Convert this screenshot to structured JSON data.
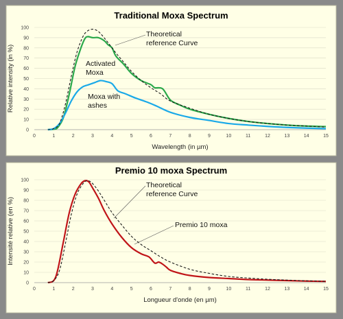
{
  "chart_data": [
    {
      "type": "line",
      "title": "Traditional  Moxa Spectrum",
      "xlabel": "Wavelength (in µm)",
      "ylabel": "Relative intensity (in %)",
      "xlim": [
        0,
        15
      ],
      "ylim": [
        0,
        100
      ],
      "xticks": [
        0,
        1,
        2,
        3,
        4,
        5,
        6,
        7,
        8,
        9,
        10,
        11,
        12,
        13,
        14,
        15
      ],
      "yticks": [
        0,
        10,
        20,
        30,
        40,
        50,
        60,
        70,
        80,
        90,
        100
      ],
      "grid": true,
      "annotations": [
        {
          "line1": "Theoretical",
          "line2": "reference Curve"
        },
        {
          "line1": "Activated",
          "line2": "Moxa"
        },
        {
          "line1": "Moxa with",
          "line2": "ashes"
        }
      ],
      "series": [
        {
          "name": "Theoretical reference Curve",
          "color": "#1a1a1a",
          "dash": true,
          "x": [
            0.7,
            1.0,
            1.3,
            1.6,
            1.9,
            2.2,
            2.5,
            2.7,
            2.9,
            3.1,
            3.3,
            3.5,
            3.8,
            4.2,
            4.6,
            5.0,
            5.5,
            6.0,
            6.5,
            7.0,
            8.0,
            9.0,
            10.0,
            11.0,
            12.0,
            13.0,
            14.0,
            15.0
          ],
          "y": [
            0,
            1,
            6,
            25,
            52,
            76,
            91,
            96,
            98,
            98,
            96,
            92,
            85,
            75,
            66,
            57,
            48,
            41,
            35,
            28,
            21,
            15,
            11,
            8,
            6,
            4.5,
            3.5,
            2.5
          ]
        },
        {
          "name": "Activated Moxa",
          "color": "#2aa84a",
          "dash": false,
          "x": [
            0.7,
            1.0,
            1.2,
            1.5,
            1.8,
            2.1,
            2.4,
            2.6,
            2.75,
            3.0,
            3.3,
            3.6,
            3.8,
            4.0,
            4.2,
            4.6,
            5.0,
            5.5,
            6.0,
            6.2,
            6.6,
            7.0,
            7.5,
            8.0,
            9.0,
            10.0,
            11.0,
            12.0,
            13.0,
            14.0,
            15.0
          ],
          "y": [
            0,
            0.5,
            2,
            12,
            35,
            62,
            80,
            89,
            91,
            90,
            90,
            87,
            83,
            80,
            72,
            64,
            55,
            48,
            44,
            41,
            40,
            29,
            24,
            20,
            15,
            11,
            8,
            6,
            4.5,
            3.5,
            3
          ]
        },
        {
          "name": "Moxa with ashes",
          "color": "#1aa9e8",
          "dash": false,
          "x": [
            0.7,
            1.0,
            1.3,
            1.6,
            1.9,
            2.2,
            2.5,
            2.8,
            3.1,
            3.4,
            3.7,
            4.0,
            4.3,
            4.7,
            5.2,
            5.8,
            6.3,
            7.0,
            8.0,
            9.0,
            10.0,
            11.0,
            12.0,
            13.0,
            14.0,
            15.0
          ],
          "y": [
            0,
            1,
            6,
            16,
            28,
            37,
            42,
            44,
            46,
            48,
            47,
            45,
            38,
            35,
            31,
            27,
            23,
            17,
            12,
            9,
            6,
            4.5,
            3.2,
            2.2,
            1.5,
            1
          ]
        }
      ]
    },
    {
      "type": "line",
      "title": "Premio 10 moxa Spectrum",
      "xlabel": "Longueur d'onde (en µm)",
      "ylabel": "Intensité relative (en %)",
      "xlim": [
        0,
        15
      ],
      "ylim": [
        0,
        100
      ],
      "xticks": [
        0,
        1,
        2,
        3,
        4,
        5,
        6,
        7,
        8,
        9,
        10,
        11,
        12,
        13,
        14,
        15
      ],
      "yticks": [
        0,
        10,
        20,
        30,
        40,
        50,
        60,
        70,
        80,
        90,
        100
      ],
      "grid": true,
      "annotations": [
        {
          "line1": "Theoretical",
          "line2": "reference Curve"
        },
        {
          "line1": "Premio 10 moxa",
          "line2": ""
        }
      ],
      "series": [
        {
          "name": "Theoretical reference Curve",
          "color": "#1a1a1a",
          "dash": true,
          "x": [
            0.7,
            1.0,
            1.3,
            1.6,
            1.9,
            2.2,
            2.5,
            2.7,
            2.9,
            3.1,
            3.3,
            3.6,
            4.0,
            4.5,
            5.0,
            5.5,
            6.0,
            6.5,
            7.0,
            8.0,
            9.0,
            10.0,
            11.0,
            12.0,
            13.0,
            14.0,
            15.0
          ],
          "y": [
            0,
            2,
            12,
            38,
            66,
            86,
            96,
            99,
            98,
            94,
            89,
            80,
            68,
            56,
            45,
            37,
            31,
            25,
            20,
            13,
            9,
            6,
            4.5,
            3.3,
            2.5,
            1.8,
            1.3
          ]
        },
        {
          "name": "Premio 10 moxa",
          "color": "#c01418",
          "dash": false,
          "x": [
            0.7,
            1.0,
            1.2,
            1.5,
            1.8,
            2.1,
            2.4,
            2.6,
            2.8,
            3.0,
            3.3,
            3.6,
            4.0,
            4.5,
            5.0,
            5.5,
            5.9,
            6.2,
            6.4,
            6.6,
            6.8,
            7.0,
            7.5,
            8.0,
            9.0,
            10.0,
            11.0,
            12.0,
            13.0,
            14.0,
            15.0
          ],
          "y": [
            0,
            2,
            12,
            40,
            68,
            86,
            96,
            99,
            98,
            92,
            82,
            70,
            57,
            44,
            34,
            28,
            25,
            19,
            20,
            18,
            15,
            12,
            9,
            7,
            5,
            4,
            3,
            2.5,
            2,
            1.5,
            1.2
          ]
        }
      ]
    }
  ]
}
